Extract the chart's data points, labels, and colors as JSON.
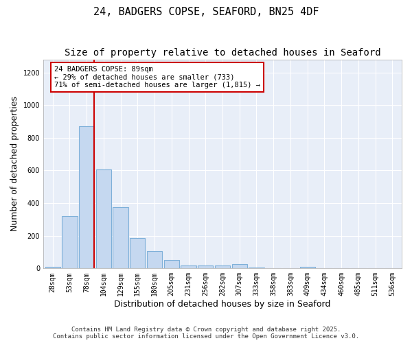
{
  "title1": "24, BADGERS COPSE, SEAFORD, BN25 4DF",
  "title2": "Size of property relative to detached houses in Seaford",
  "xlabel": "Distribution of detached houses by size in Seaford",
  "ylabel": "Number of detached properties",
  "categories": [
    "28sqm",
    "53sqm",
    "78sqm",
    "104sqm",
    "129sqm",
    "155sqm",
    "180sqm",
    "205sqm",
    "231sqm",
    "256sqm",
    "282sqm",
    "307sqm",
    "333sqm",
    "358sqm",
    "383sqm",
    "409sqm",
    "434sqm",
    "460sqm",
    "485sqm",
    "511sqm",
    "536sqm"
  ],
  "values": [
    10,
    320,
    870,
    605,
    375,
    185,
    105,
    50,
    20,
    18,
    18,
    25,
    5,
    0,
    0,
    10,
    0,
    0,
    0,
    0,
    0
  ],
  "bar_color": "#c5d8f0",
  "bar_edge_color": "#7eb0d9",
  "red_line_bin": 2,
  "annotation_text": "24 BADGERS COPSE: 89sqm\n← 29% of detached houses are smaller (733)\n71% of semi-detached houses are larger (1,815) →",
  "annotation_box_color": "#ffffff",
  "annotation_box_edge": "#cc0000",
  "red_line_color": "#cc0000",
  "ylim": [
    0,
    1280
  ],
  "yticks": [
    0,
    200,
    400,
    600,
    800,
    1000,
    1200
  ],
  "background_color": "#ffffff",
  "plot_bg_color": "#e8eef8",
  "grid_color": "#ffffff",
  "footer1": "Contains HM Land Registry data © Crown copyright and database right 2025.",
  "footer2": "Contains public sector information licensed under the Open Government Licence v3.0.",
  "title_fontsize": 11,
  "subtitle_fontsize": 10,
  "axis_label_fontsize": 9,
  "tick_fontsize": 7,
  "footer_fontsize": 6.5
}
